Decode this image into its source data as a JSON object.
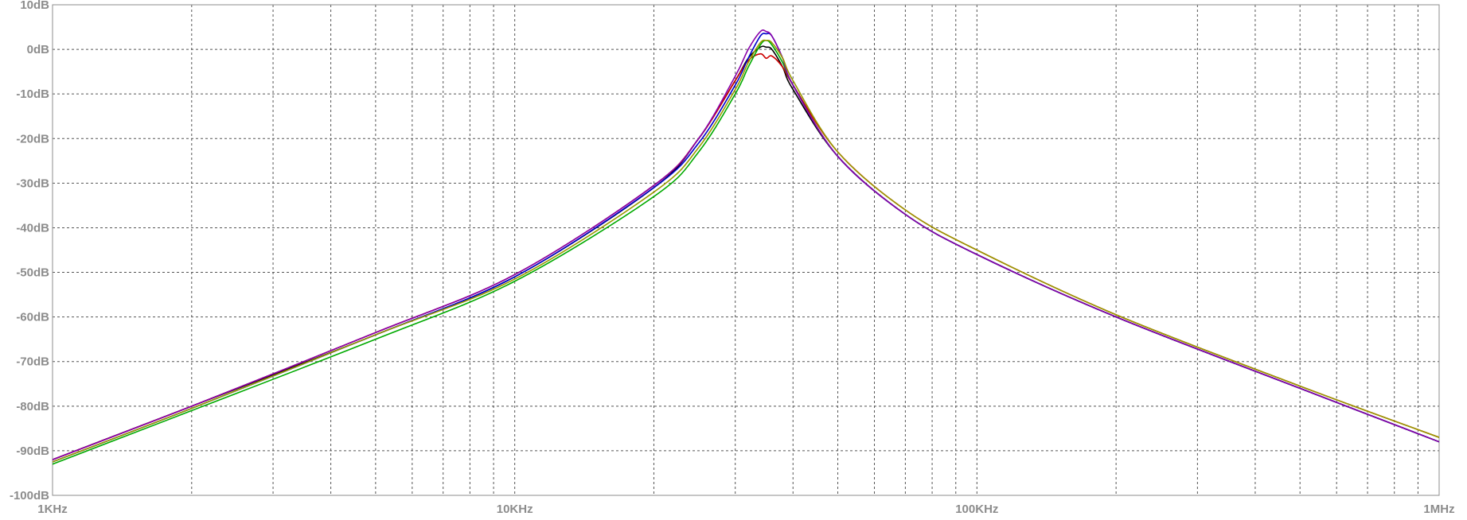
{
  "chart_data": {
    "type": "line",
    "title": "",
    "xlabel": "",
    "ylabel": "",
    "x_scale": "log",
    "x_range_hz": [
      1000,
      1000000
    ],
    "y_range_db": [
      -100,
      10
    ],
    "grid": true,
    "x_ticks": [
      {
        "value": 1000,
        "label": "1KHz"
      },
      {
        "value": 10000,
        "label": "10KHz"
      },
      {
        "value": 100000,
        "label": "100KHz"
      },
      {
        "value": 1000000,
        "label": "1MHz"
      }
    ],
    "y_ticks": [
      {
        "value": 10,
        "label": "10dB"
      },
      {
        "value": 0,
        "label": "0dB"
      },
      {
        "value": -10,
        "label": "-10dB"
      },
      {
        "value": -20,
        "label": "-20dB"
      },
      {
        "value": -30,
        "label": "-30dB"
      },
      {
        "value": -40,
        "label": "-40dB"
      },
      {
        "value": -50,
        "label": "-50dB"
      },
      {
        "value": -60,
        "label": "-60dB"
      },
      {
        "value": -70,
        "label": "-70dB"
      },
      {
        "value": -80,
        "label": "-80dB"
      },
      {
        "value": -90,
        "label": "-90dB"
      },
      {
        "value": -100,
        "label": "-100dB"
      }
    ],
    "series": [
      {
        "color": "#000000",
        "x": [
          1000,
          2000,
          5000,
          10000,
          20000,
          25000,
          30000,
          32000,
          34000,
          35000,
          36000,
          38000,
          40000,
          50000,
          70000,
          100000,
          200000,
          500000,
          1000000
        ],
        "y": [
          -92,
          -80,
          -64,
          -51,
          -31,
          -20,
          -7,
          -2,
          0.5,
          0.5,
          0,
          -4,
          -9,
          -24,
          -37,
          -46,
          -60,
          -76,
          -88
        ]
      },
      {
        "color": "#cc0000",
        "x": [
          1000,
          2000,
          5000,
          10000,
          20000,
          25000,
          30000,
          32000,
          34000,
          35000,
          36000,
          38000,
          40000,
          50000,
          70000,
          100000,
          200000,
          500000,
          1000000
        ],
        "y": [
          -92,
          -80,
          -63.5,
          -50.5,
          -30.5,
          -20,
          -7,
          -2.5,
          -1,
          -2,
          -1.5,
          -4,
          -8,
          -23,
          -36,
          -45,
          -59.5,
          -75.5,
          -87
        ]
      },
      {
        "color": "#00aa00",
        "x": [
          1000,
          2000,
          5000,
          10000,
          20000,
          25000,
          30000,
          32000,
          34000,
          35000,
          36000,
          38000,
          40000,
          50000,
          70000,
          100000,
          200000,
          500000,
          1000000
        ],
        "y": [
          -93,
          -81,
          -65,
          -52,
          -33,
          -23,
          -10,
          -4,
          1,
          2,
          1,
          -3,
          -8,
          -24,
          -37,
          -46,
          -60,
          -76,
          -88
        ]
      },
      {
        "color": "#0000cc",
        "x": [
          1000,
          2000,
          5000,
          10000,
          20000,
          25000,
          30000,
          32000,
          34000,
          35000,
          36000,
          38000,
          40000,
          50000,
          70000,
          100000,
          200000,
          500000,
          1000000
        ],
        "y": [
          -92.5,
          -80.5,
          -64,
          -51,
          -31,
          -21,
          -8,
          -2,
          3,
          3.5,
          3,
          -2,
          -8,
          -24,
          -37,
          -46,
          -60,
          -76,
          -88
        ]
      },
      {
        "color": "#8800aa",
        "x": [
          1000,
          2000,
          5000,
          10000,
          20000,
          25000,
          30000,
          32000,
          34000,
          35000,
          36000,
          38000,
          40000,
          50000,
          70000,
          100000,
          200000,
          500000,
          1000000
        ],
        "y": [
          -92,
          -80,
          -63.5,
          -50.5,
          -30.5,
          -20,
          -6,
          0,
          4,
          4,
          3,
          -2,
          -8,
          -24,
          -37,
          -46,
          -60,
          -76,
          -88
        ]
      },
      {
        "color": "#999900",
        "x": [
          1000,
          2000,
          5000,
          10000,
          20000,
          25000,
          30000,
          32000,
          34000,
          35000,
          36000,
          38000,
          40000,
          50000,
          70000,
          100000,
          200000,
          500000,
          1000000
        ],
        "y": [
          -92.5,
          -80.5,
          -64,
          -51.5,
          -32,
          -22,
          -9,
          -3,
          1.5,
          2,
          1.5,
          -2,
          -7,
          -23,
          -36,
          -45,
          -59.5,
          -75.5,
          -87
        ]
      }
    ]
  }
}
